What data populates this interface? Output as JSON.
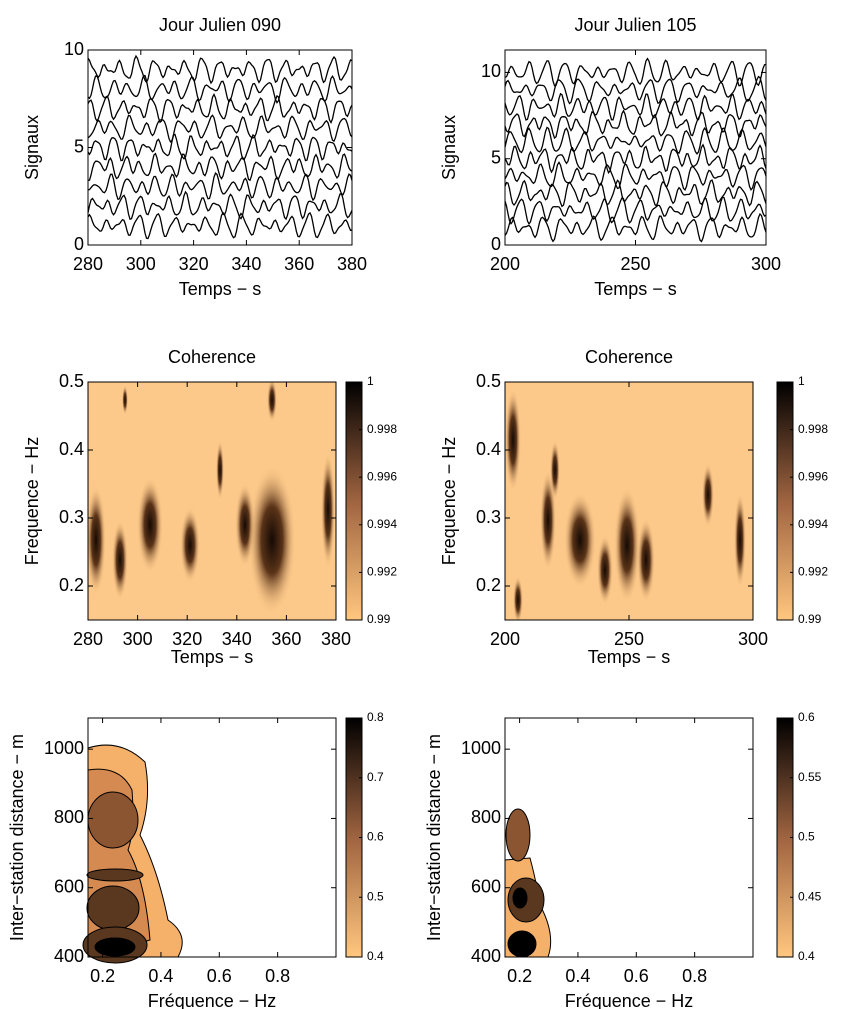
{
  "chart_data": [
    {
      "type": "line",
      "title": "Jour Julien 090",
      "xlabel": "Temps − s",
      "ylabel": "Signaux",
      "xlim": [
        280,
        380
      ],
      "ylim": [
        0,
        10
      ],
      "xticks": [
        280,
        300,
        320,
        340,
        360,
        380
      ],
      "yticks": [
        0,
        5,
        10
      ]
    },
    {
      "type": "line",
      "title": "Jour Julien 105",
      "xlabel": "Temps − s",
      "ylabel": "Signaux",
      "xlim": [
        200,
        300
      ],
      "ylim": [
        0,
        11.3
      ],
      "xticks": [
        200,
        250,
        300
      ],
      "yticks": [
        0,
        5,
        10
      ]
    },
    {
      "type": "heatmap",
      "title": "Coherence",
      "xlabel": "Temps − s",
      "ylabel": "Frequence − Hz",
      "xlim": [
        280,
        380
      ],
      "ylim": [
        0.15,
        0.5
      ],
      "xticks": [
        280,
        300,
        320,
        340,
        360,
        380
      ],
      "yticks": [
        0.2,
        0.3,
        0.4,
        0.5
      ],
      "colorbar": {
        "lim": [
          0.99,
          1
        ],
        "ticks": [
          0.99,
          0.992,
          0.994,
          0.996,
          0.998,
          1
        ]
      }
    },
    {
      "type": "heatmap",
      "title": "Coherence",
      "xlabel": "Temps − s",
      "ylabel": "Frequence − Hz",
      "xlim": [
        200,
        300
      ],
      "ylim": [
        0.15,
        0.5
      ],
      "xticks": [
        200,
        250,
        300
      ],
      "yticks": [
        0.2,
        0.3,
        0.4,
        0.5
      ],
      "colorbar": {
        "lim": [
          0.99,
          1
        ],
        "ticks": [
          0.99,
          0.992,
          0.994,
          0.996,
          0.998,
          1
        ]
      }
    },
    {
      "type": "contour",
      "xlabel": "Fréquence − Hz",
      "ylabel": "Inter−station distance − m",
      "xlim": [
        0.15,
        1
      ],
      "ylim": [
        400,
        1090
      ],
      "xticks": [
        0.2,
        0.4,
        0.6,
        0.8
      ],
      "yticks": [
        400,
        600,
        800,
        1000
      ],
      "colorbar": {
        "lim": [
          0.4,
          0.8
        ],
        "ticks": [
          0.4,
          0.5,
          0.6,
          0.7,
          0.8
        ]
      }
    },
    {
      "type": "contour",
      "xlabel": "Fréquence − Hz",
      "ylabel": "Inter−station distance − m",
      "xlim": [
        0.15,
        1
      ],
      "ylim": [
        400,
        1090
      ],
      "xticks": [
        0.2,
        0.4,
        0.6,
        0.8
      ],
      "yticks": [
        400,
        600,
        800,
        1000
      ],
      "colorbar": {
        "lim": [
          0.4,
          0.6
        ],
        "ticks": [
          0.4,
          0.45,
          0.5,
          0.55,
          0.6
        ]
      }
    }
  ]
}
